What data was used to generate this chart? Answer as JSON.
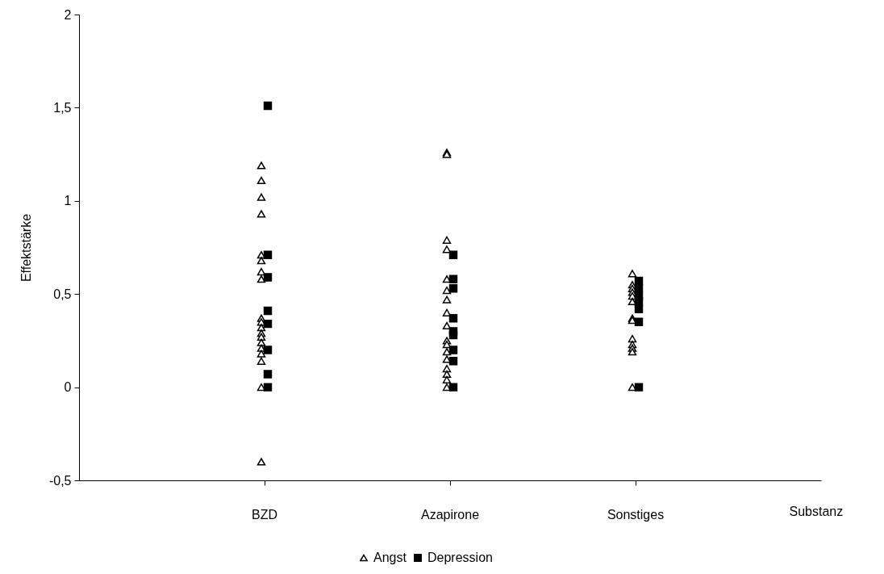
{
  "chart_data": {
    "type": "scatter",
    "ylabel": "Effektstärke",
    "xlabel": "Substanz",
    "categories": [
      "BZD",
      "Azapirone",
      "Sonstiges"
    ],
    "ylim": [
      -0.5,
      2
    ],
    "yticks": [
      {
        "value": -0.5,
        "label": "-0,5"
      },
      0,
      {
        "value": 0.5,
        "label": "0,5"
      },
      1,
      {
        "value": 1.5,
        "label": "1,5"
      },
      2
    ],
    "grid": false,
    "legend": "bottom",
    "series": [
      {
        "name": "Angst",
        "color": "#000000",
        "marker": "triangle",
        "x": [
          "BZD",
          "BZD",
          "BZD",
          "BZD",
          "BZD",
          "BZD",
          "BZD",
          "BZD",
          "BZD",
          "BZD",
          "BZD",
          "BZD",
          "BZD",
          "BZD",
          "BZD",
          "BZD",
          "BZD",
          "BZD",
          "BZD",
          "Azapirone",
          "Azapirone",
          "Azapirone",
          "Azapirone",
          "Azapirone",
          "Azapirone",
          "Azapirone",
          "Azapirone",
          "Azapirone",
          "Azapirone",
          "Azapirone",
          "Azapirone",
          "Azapirone",
          "Azapirone",
          "Azapirone",
          "Azapirone",
          "Azapirone",
          "Sonstiges",
          "Sonstiges",
          "Sonstiges",
          "Sonstiges",
          "Sonstiges",
          "Sonstiges",
          "Sonstiges",
          "Sonstiges",
          "Sonstiges",
          "Sonstiges",
          "Sonstiges",
          "Sonstiges",
          "Sonstiges"
        ],
        "values": [
          1.19,
          1.11,
          1.02,
          0.93,
          0.71,
          0.68,
          0.62,
          0.58,
          0.37,
          0.35,
          0.32,
          0.29,
          0.27,
          0.24,
          0.21,
          0.18,
          0.14,
          0,
          -0.4,
          1.26,
          1.25,
          0.79,
          0.74,
          0.58,
          0.52,
          0.47,
          0.4,
          0.33,
          0.25,
          0.23,
          0.19,
          0.15,
          0.1,
          0.07,
          0.04,
          0,
          0.61,
          0.55,
          0.53,
          0.51,
          0.49,
          0.46,
          0.37,
          0.36,
          0.26,
          0.23,
          0.21,
          0.19,
          0
        ]
      },
      {
        "name": "Depression",
        "color": "#000000",
        "marker": "square",
        "x": [
          "BZD",
          "BZD",
          "BZD",
          "BZD",
          "BZD",
          "BZD",
          "BZD",
          "BZD",
          "Azapirone",
          "Azapirone",
          "Azapirone",
          "Azapirone",
          "Azapirone",
          "Azapirone",
          "Azapirone",
          "Azapirone",
          "Azapirone",
          "Sonstiges",
          "Sonstiges",
          "Sonstiges",
          "Sonstiges",
          "Sonstiges",
          "Sonstiges",
          "Sonstiges"
        ],
        "values": [
          1.51,
          0.71,
          0.59,
          0.41,
          0.34,
          0.2,
          0.07,
          0,
          0.71,
          0.58,
          0.53,
          0.37,
          0.3,
          0.28,
          0.2,
          0.14,
          0,
          0.57,
          0.53,
          0.49,
          0.46,
          0.42,
          0.35,
          0
        ]
      }
    ]
  }
}
